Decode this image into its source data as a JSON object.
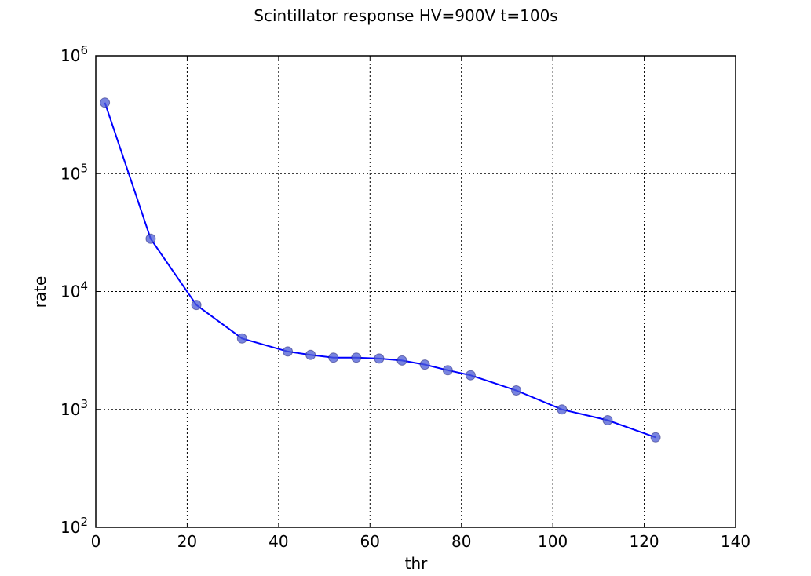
{
  "chart_data": {
    "type": "line",
    "title": "Scintillator response HV=900V t=100s",
    "xlabel": "thr",
    "ylabel": "rate",
    "xlim": [
      0,
      140
    ],
    "ylim": [
      100,
      1000000
    ],
    "yscale": "log",
    "grid": true,
    "x_ticks": [
      {
        "value": 0,
        "label": "0"
      },
      {
        "value": 20,
        "label": "20"
      },
      {
        "value": 40,
        "label": "40"
      },
      {
        "value": 60,
        "label": "60"
      },
      {
        "value": 80,
        "label": "80"
      },
      {
        "value": 100,
        "label": "100"
      },
      {
        "value": 120,
        "label": "120"
      },
      {
        "value": 140,
        "label": "140"
      }
    ],
    "y_ticks": [
      {
        "value": 100,
        "base": "10",
        "exp": "2"
      },
      {
        "value": 1000,
        "base": "10",
        "exp": "3"
      },
      {
        "value": 10000,
        "base": "10",
        "exp": "4"
      },
      {
        "value": 100000,
        "base": "10",
        "exp": "5"
      },
      {
        "value": 1000000,
        "base": "10",
        "exp": "6"
      }
    ],
    "series": [
      {
        "line_color": "#0000ff",
        "marker_color": "#4b5bd6",
        "x": [
          2,
          12,
          22,
          32,
          42,
          47,
          52,
          57,
          62,
          67,
          72,
          77,
          82,
          92,
          102,
          112,
          122.5
        ],
        "y": [
          400000,
          28000,
          7700,
          4000,
          3100,
          2900,
          2750,
          2750,
          2700,
          2600,
          2400,
          2150,
          1950,
          1450,
          1000,
          810,
          580
        ]
      }
    ]
  }
}
